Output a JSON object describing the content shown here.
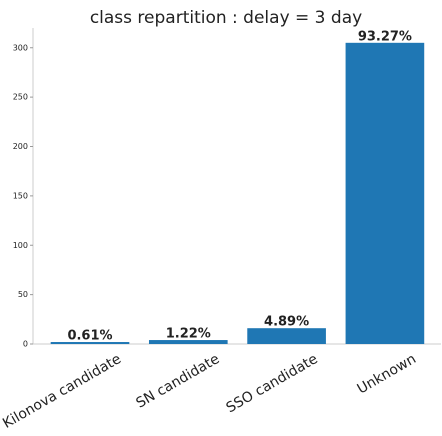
{
  "chart_data": {
    "type": "bar",
    "title": "class repartition : delay = 3 day",
    "categories": [
      "Kilonova candidate",
      "SN candidate",
      "SSO candidate",
      "Unknown"
    ],
    "values": [
      2,
      4,
      16,
      305
    ],
    "labels": [
      {
        "value": 0.61,
        "label": "0.61%"
      },
      {
        "value": 1.22,
        "label": "1.22%"
      },
      {
        "value": 4.89,
        "label": "4.89%"
      },
      {
        "value": 93.27,
        "label": "93.27%"
      }
    ],
    "color": "#1f77b4",
    "ylim": [
      0,
      320
    ],
    "yticks": [
      0,
      50,
      100,
      150,
      200,
      250,
      300
    ],
    "grid": false
  }
}
